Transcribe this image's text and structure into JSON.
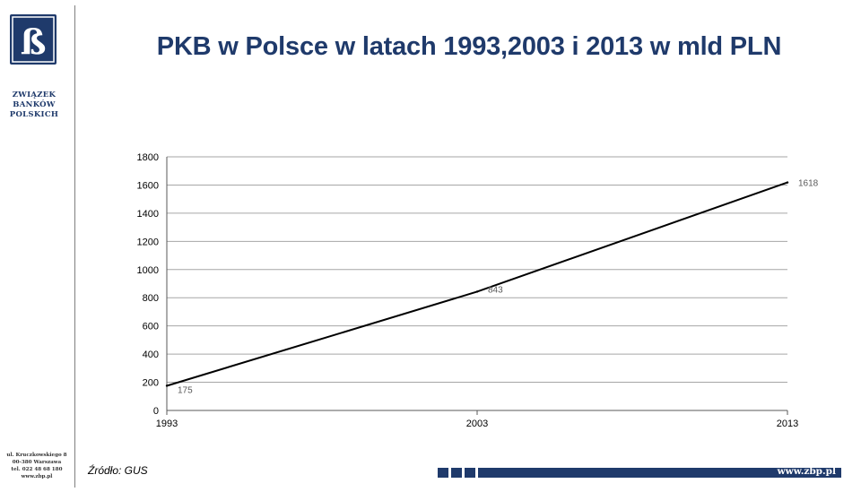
{
  "page": {
    "title": "PKB w Polsce w latach 1993,2003 i 2013 w mld PLN",
    "source": "Źródło: GUS"
  },
  "org": {
    "logo_letter": "ß",
    "name_lines": [
      "ZWIĄZEK",
      "BANKÓW",
      "POLSKICH"
    ],
    "address_lines": [
      "ul. Kruczkowskiego 8",
      "00-380 Warszawa",
      "tel. 022 48 68 180",
      "www.zbp.pl"
    ],
    "website": "www.zbp.pl"
  },
  "colors": {
    "brand_blue": "#1f3a6b",
    "line": "#000000",
    "grid": "#a6a6a6"
  },
  "chart_data": {
    "type": "line",
    "x": [
      "1993",
      "2003",
      "2013"
    ],
    "series": [
      {
        "values": [
          175,
          843,
          1618
        ]
      }
    ],
    "data_labels": [
      "175",
      "843",
      "1618"
    ],
    "y_ticks": [
      "0",
      "200",
      "400",
      "600",
      "800",
      "1000",
      "1200",
      "1400",
      "1600",
      "1800"
    ],
    "ylim": [
      0,
      1800
    ],
    "grid": true,
    "legend": "none",
    "title": "",
    "xlabel": "",
    "ylabel": ""
  }
}
